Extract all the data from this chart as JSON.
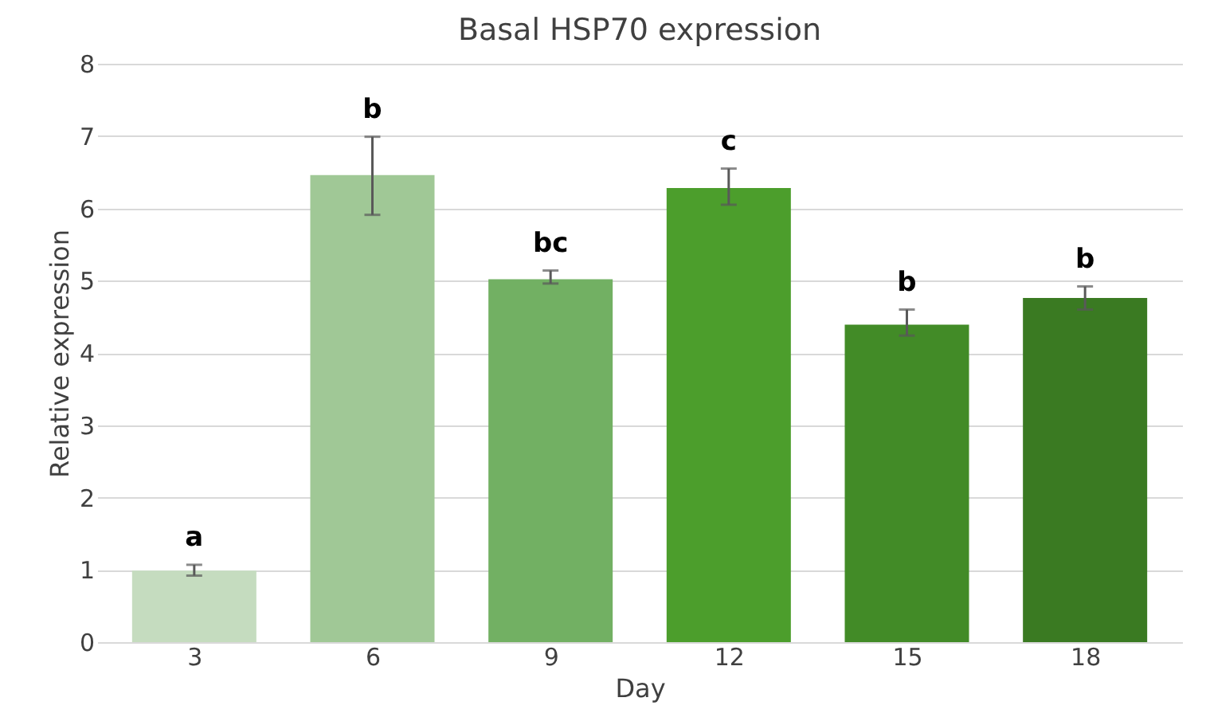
{
  "chart_data": {
    "type": "bar",
    "title": "Basal HSP70 expression",
    "xlabel": "Day",
    "ylabel": "Relative expression",
    "categories": [
      "3",
      "6",
      "9",
      "12",
      "15",
      "18"
    ],
    "values": [
      0.99,
      6.46,
      5.02,
      6.28,
      4.39,
      4.76
    ],
    "errors": [
      [
        0.92,
        1.07
      ],
      [
        5.91,
        6.99
      ],
      [
        4.96,
        5.14
      ],
      [
        6.05,
        6.55
      ],
      [
        4.24,
        4.6
      ],
      [
        4.6,
        4.92
      ]
    ],
    "colors": [
      "#c5dcbf",
      "#a0c896",
      "#72b063",
      "#4c9e2c",
      "#428b27",
      "#3a7a22"
    ],
    "ylim": [
      0,
      8
    ],
    "yticks": [
      0,
      1,
      2,
      3,
      4,
      5,
      6,
      7,
      8
    ],
    "grid": "y",
    "annotations": [
      "a",
      "b",
      "bc",
      "c",
      "b",
      "b"
    ]
  }
}
